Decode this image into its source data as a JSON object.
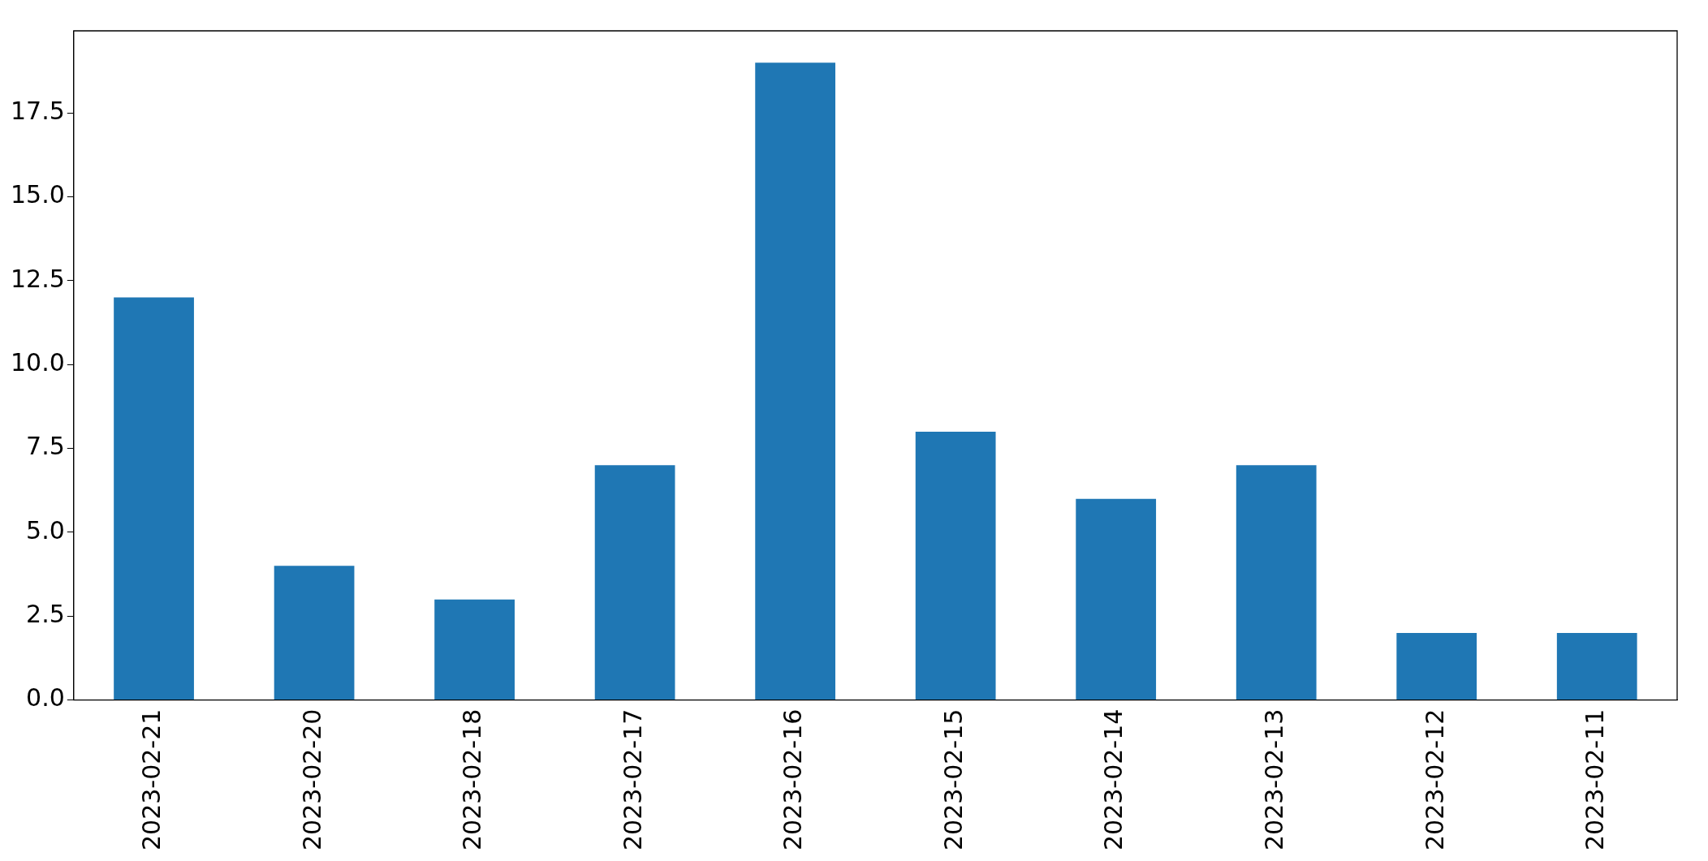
{
  "chart_data": {
    "type": "bar",
    "categories": [
      "2023-02-21",
      "2023-02-20",
      "2023-02-18",
      "2023-02-17",
      "2023-02-16",
      "2023-02-15",
      "2023-02-14",
      "2023-02-13",
      "2023-02-12",
      "2023-02-11"
    ],
    "values": [
      12,
      4,
      3,
      7,
      19,
      8,
      6,
      7,
      2,
      2
    ],
    "color": "#1f77b4",
    "ylim": [
      0,
      19.95
    ],
    "yticks": [
      {
        "value": 0,
        "label": "0.0"
      },
      {
        "value": 2.5,
        "label": "2.5"
      },
      {
        "value": 5,
        "label": "5.0"
      },
      {
        "value": 7.5,
        "label": "7.5"
      },
      {
        "value": 10,
        "label": "10.0"
      },
      {
        "value": 12.5,
        "label": "12.5"
      },
      {
        "value": 15,
        "label": "15.0"
      },
      {
        "value": 17.5,
        "label": "17.5"
      }
    ],
    "grid": false,
    "legend": false
  }
}
